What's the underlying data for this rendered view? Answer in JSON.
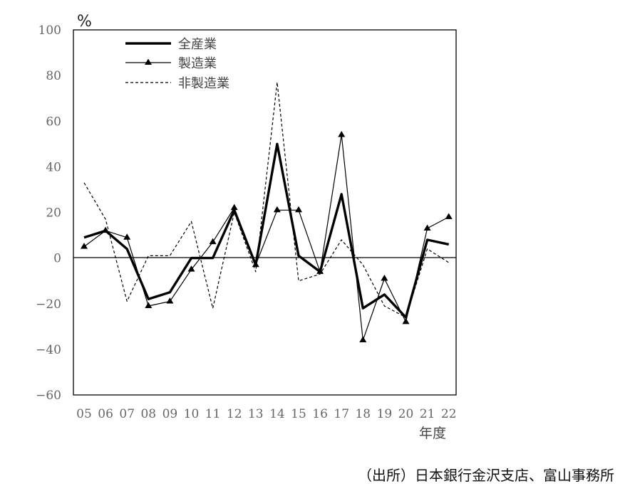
{
  "chart_data": {
    "type": "line",
    "ylabel": "%",
    "xlabel": "年度",
    "ylim": [
      -60,
      100
    ],
    "yticks": [
      100,
      80,
      60,
      40,
      20,
      0,
      -20,
      -40,
      -60
    ],
    "categories": [
      "05",
      "06",
      "07",
      "08",
      "09",
      "10",
      "11",
      "12",
      "13",
      "14",
      "15",
      "16",
      "17",
      "18",
      "19",
      "20",
      "21",
      "22"
    ],
    "series": [
      {
        "name": "全産業",
        "values": [
          9,
          12,
          4,
          -18,
          -15,
          0,
          0,
          21,
          -3,
          50,
          1,
          -6,
          28,
          -22,
          -16,
          -26,
          8,
          6
        ]
      },
      {
        "name": "製造業",
        "values": [
          5,
          12,
          9,
          -21,
          -19,
          -5,
          7,
          22,
          -3,
          21,
          21,
          -6,
          54,
          -36,
          -9,
          -28,
          13,
          18
        ]
      },
      {
        "name": "非製造業",
        "values": [
          33,
          17,
          -19,
          1,
          1,
          16,
          -22,
          20,
          -6,
          77,
          -10,
          -7,
          8,
          -3,
          -21,
          -26,
          4,
          -2
        ]
      }
    ],
    "legend_position": "top-left",
    "grid": false
  },
  "source_text": "（出所）日本銀行金沢支店、富山事務所"
}
